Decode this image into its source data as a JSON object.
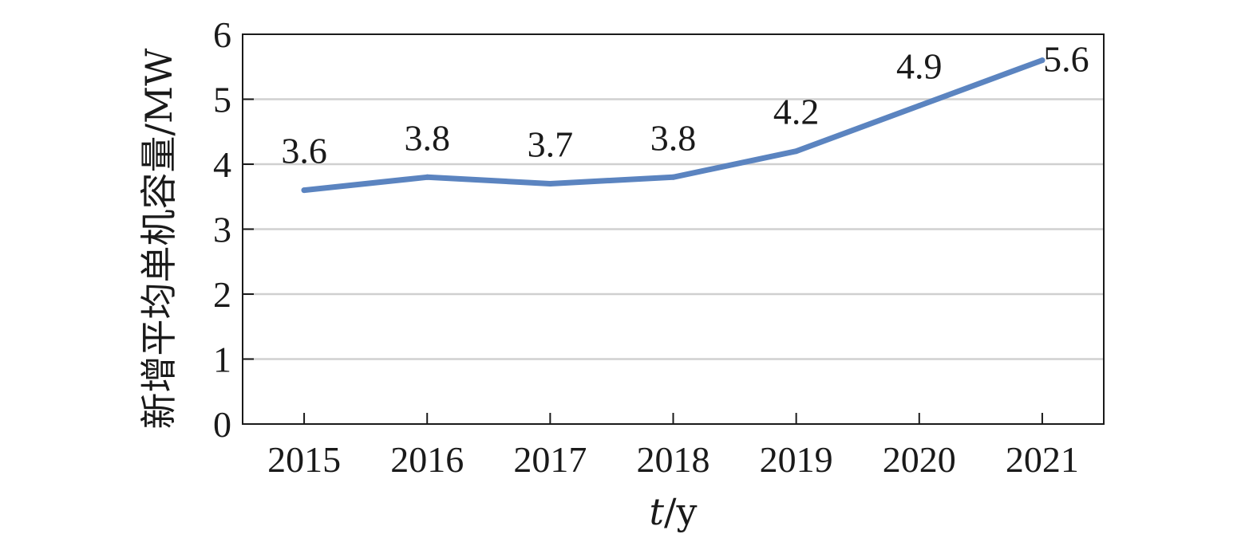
{
  "chart_data": {
    "type": "line",
    "categories": [
      "2015",
      "2016",
      "2017",
      "2018",
      "2019",
      "2020",
      "2021"
    ],
    "series": [
      {
        "values": [
          3.6,
          3.8,
          3.7,
          3.8,
          4.2,
          4.9,
          5.6
        ]
      }
    ],
    "data_labels": [
      "3.6",
      "3.8",
      "3.7",
      "3.8",
      "4.2",
      "4.9",
      "5.6"
    ],
    "xlabel_var": "t",
    "xlabel_unit": "/y",
    "ylabel": "新增平均单机容量/MW",
    "ylim": [
      0,
      6
    ],
    "yticks": [
      "0",
      "1",
      "2",
      "3",
      "4",
      "5",
      "6"
    ],
    "grid": true,
    "legend": "none",
    "colors": {
      "line": "#5b84c0",
      "grid": "#d0d0d0",
      "axis": "#1a1a1a"
    }
  }
}
